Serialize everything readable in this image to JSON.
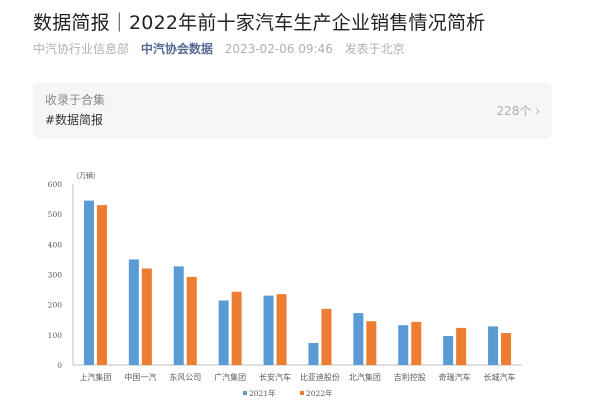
{
  "article": {
    "title": "数据简报｜2022年前十家汽车生产企业销售情况简析",
    "author": "中汽协行业信息部",
    "account": "中汽协会数据",
    "datetime": "2023-02-06 09:46",
    "location": "发表于北京"
  },
  "collection": {
    "label": "收录于合集",
    "tag": "#数据简报",
    "count": "228个",
    "chevron": "chevron-right-icon"
  },
  "colors": {
    "s2021": "#5b9bd5",
    "s2022": "#ed7d31",
    "axis": "#bfbfbf"
  },
  "chart_data": {
    "type": "bar",
    "title": "",
    "unit_label": "（万辆）",
    "xlabel": "",
    "ylabel": "万辆",
    "ylim": [
      0,
      600
    ],
    "yticks": [
      0,
      100,
      200,
      300,
      400,
      500,
      600
    ],
    "grid": false,
    "legend_position": "bottom",
    "categories": [
      "上汽集团",
      "中国一汽",
      "东风公司",
      "广汽集团",
      "长安汽车",
      "比亚迪股份",
      "北汽集团",
      "吉利控股",
      "奇瑞汽车",
      "长城汽车"
    ],
    "series": [
      {
        "name": "2021年",
        "values": [
          545,
          350,
          327,
          214,
          230,
          73,
          172,
          132,
          96,
          128
        ]
      },
      {
        "name": "2022年",
        "values": [
          530,
          320,
          292,
          243,
          235,
          186,
          145,
          143,
          123,
          106
        ]
      }
    ]
  }
}
